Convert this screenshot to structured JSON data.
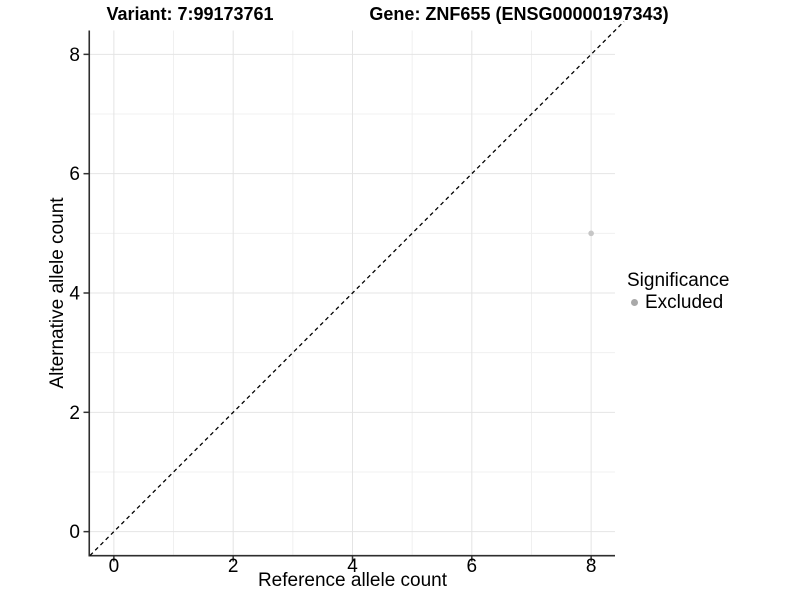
{
  "titles": {
    "variant": "Variant: 7:99173761",
    "gene": "Gene: ZNF655 (ENSG00000197343)"
  },
  "chart_data": {
    "type": "scatter",
    "title_left": "Variant: 7:99173761",
    "title_right": "Gene: ZNF655 (ENSG00000197343)",
    "xlabel": "Reference allele count",
    "ylabel": "Alternative allele count",
    "xlim": [
      -0.4,
      8.4
    ],
    "ylim": [
      -0.4,
      8.4
    ],
    "x_ticks": [
      0,
      2,
      4,
      6,
      8
    ],
    "y_ticks": [
      0,
      2,
      4,
      6,
      8
    ],
    "x_minor_ticks": [
      1,
      3,
      5,
      7
    ],
    "y_minor_ticks": [
      1,
      3,
      5,
      7
    ],
    "grid": "major+minor",
    "legend_position": "right",
    "reference_line": {
      "kind": "identity-diagonal",
      "slope": 1,
      "intercept": 0,
      "style": "dashed",
      "color": "#000000",
      "from": -0.4,
      "to": 8.55
    },
    "series": [
      {
        "name": "Excluded",
        "color": "#c6c6c6",
        "points": [
          {
            "x": 8,
            "y": 5
          }
        ]
      }
    ],
    "legend": {
      "title": "Significance",
      "entries": [
        {
          "label": "Excluded",
          "color": "#a9a9a9"
        }
      ]
    },
    "colors": {
      "axis_line": "#2e2e2e",
      "tick_mark": "#333333",
      "tick_label": "#000000",
      "grid_major": "#e4e4e4",
      "grid_minor": "#f0f0f0",
      "background": "#ffffff"
    }
  }
}
